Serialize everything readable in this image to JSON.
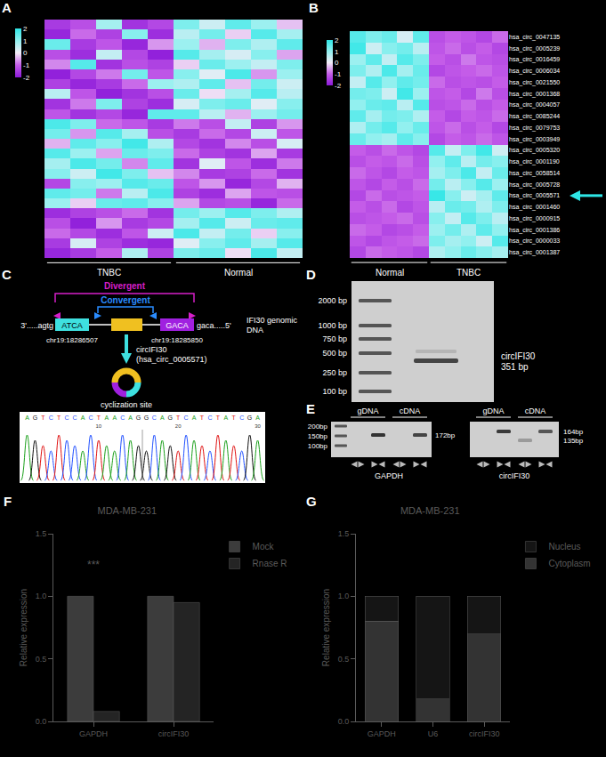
{
  "chart_data": [
    {
      "panel": "A",
      "type": "heatmap",
      "tick_labels": false,
      "column_groups": [
        {
          "label": "TNBC",
          "count": 5
        },
        {
          "label": "Normal",
          "count": 5
        }
      ],
      "colorbar": {
        "range": [
          -2,
          2
        ],
        "ticks": [
          -2,
          -1,
          0,
          1,
          2
        ]
      },
      "cells": [
        [
          -1.5,
          -1.2,
          0.8,
          -1.6,
          -1.3,
          1.2,
          0.4,
          1.5,
          0.9,
          -0.3
        ],
        [
          -1.8,
          -0.9,
          -1.4,
          1.1,
          -1.7,
          0.6,
          1.3,
          -0.2,
          1.6,
          0.8
        ],
        [
          1.4,
          -1.5,
          -1.1,
          -1.8,
          -0.6,
          0.9,
          -0.4,
          1.2,
          0.7,
          1.5
        ],
        [
          -1.2,
          -1.7,
          0.5,
          -1.3,
          -1.9,
          1.6,
          0.8,
          0.3,
          1.1,
          -0.5
        ],
        [
          -0.7,
          1.6,
          -1.6,
          -1.2,
          -1.4,
          -0.2,
          1.4,
          0.9,
          0.5,
          1.2
        ],
        [
          -1.9,
          -1.3,
          -0.8,
          1.3,
          -1.1,
          1.1,
          0.2,
          1.7,
          -0.6,
          0.9
        ],
        [
          -1.4,
          -1.8,
          -1.5,
          -0.9,
          0.9,
          0.7,
          1.5,
          -0.3,
          1.3,
          0.4
        ],
        [
          0.6,
          -1.1,
          -1.9,
          -1.6,
          -1.2,
          1.4,
          -0.1,
          0.8,
          1.6,
          0.6
        ],
        [
          -1.6,
          -0.8,
          1.2,
          -1.4,
          -1.7,
          0.3,
          1.2,
          1.4,
          0.2,
          1.1
        ],
        [
          -1.1,
          -1.6,
          -1.3,
          -1.8,
          1.5,
          1.5,
          0.6,
          -0.4,
          0.9,
          1.3
        ],
        [
          1.7,
          1.2,
          -0.9,
          -1.1,
          -1.5,
          -0.8,
          -1.2,
          0.5,
          -1.4,
          -0.6
        ],
        [
          1.3,
          -0.6,
          1.6,
          0.8,
          -1.2,
          -1.5,
          -0.9,
          -1.3,
          0.4,
          -1.1
        ],
        [
          -0.4,
          1.5,
          1.1,
          1.8,
          0.7,
          -1.3,
          -1.6,
          -0.7,
          -1.2,
          0.3
        ],
        [
          1.6,
          0.9,
          -0.5,
          1.4,
          1.2,
          -0.9,
          -1.4,
          -1.6,
          -0.5,
          -1.5
        ],
        [
          0.8,
          1.7,
          1.3,
          -0.7,
          1.5,
          -1.6,
          0.2,
          -1.1,
          -1.7,
          -0.8
        ],
        [
          1.1,
          0.4,
          1.8,
          1.2,
          -0.3,
          -0.7,
          -1.5,
          -1.4,
          -0.9,
          -1.6
        ],
        [
          -1.3,
          1.1,
          0.9,
          1.6,
          1.4,
          -1.1,
          -0.6,
          -1.8,
          -1.3,
          -0.4
        ],
        [
          1.5,
          1.3,
          -0.8,
          0.6,
          1.7,
          -1.4,
          -1.7,
          -0.5,
          -1.1,
          -1.2
        ],
        [
          0.9,
          -0.2,
          1.4,
          1.5,
          1.1,
          -0.5,
          -1.3,
          -1.2,
          -1.8,
          -0.9
        ],
        [
          -1.7,
          -1.4,
          -1.2,
          -0.9,
          -1.6,
          1.3,
          0.9,
          1.6,
          1.2,
          0.7
        ],
        [
          -1.2,
          -1.9,
          -0.6,
          -1.5,
          -1.3,
          0.8,
          1.6,
          0.4,
          1.4,
          1.5
        ],
        [
          -0.9,
          -1.3,
          -1.7,
          -1.1,
          0.4,
          1.7,
          0.5,
          1.3,
          -0.2,
          1.1
        ],
        [
          -1.5,
          0.3,
          -1.4,
          -1.7,
          -1.8,
          0.2,
          1.1,
          1.5,
          0.8,
          1.6
        ],
        [
          -1.8,
          -1.5,
          -1.0,
          0.7,
          -1.4,
          1.2,
          1.4,
          -0.1,
          1.7,
          0.5
        ]
      ]
    },
    {
      "panel": "B",
      "type": "heatmap",
      "tick_labels": "y",
      "column_groups": [
        {
          "label": "Normal",
          "count": 5
        },
        {
          "label": "TNBC",
          "count": 5
        }
      ],
      "colorbar": {
        "range": [
          -2,
          2
        ],
        "ticks": [
          -2,
          -1,
          0,
          1,
          2
        ]
      },
      "rows": [
        "hsa_circ_0047135",
        "hsa_circ_0005239",
        "hsa_circ_0016459",
        "hsa_circ_0006034",
        "hsa_circ_0021550",
        "hsa_circ_0001368",
        "hsa_circ_0004057",
        "hsa_circ_0085244",
        "hsa_circ_0079753",
        "hsa_circ_0003949",
        "hsa_circ_0005320",
        "hsa_circ_0001190",
        "hsa_circ_0058514",
        "hsa_circ_0005728",
        "hsa_circ_0005571",
        "hsa_circ_0001460",
        "hsa_circ_0000915",
        "hsa_circ_0001386",
        "hsa_circ_0000033",
        "hsa_circ_0001387"
      ],
      "highlight": "hsa_circ_0005571",
      "cells": [
        [
          1.6,
          1.2,
          1.4,
          0.3,
          1.5,
          -1.2,
          -1.0,
          -1.1,
          -1.3,
          -0.9
        ],
        [
          1.8,
          0.4,
          1.1,
          1.3,
          0.6,
          -1.1,
          -0.9,
          -1.2,
          -1.0,
          -1.3
        ],
        [
          0.9,
          1.5,
          0.5,
          1.6,
          1.2,
          -1.0,
          -1.2,
          -0.8,
          -1.1,
          -1.2
        ],
        [
          1.2,
          0.7,
          1.7,
          0.8,
          1.4,
          -1.3,
          -1.1,
          -1.0,
          -0.9,
          -1.1
        ],
        [
          0.5,
          1.6,
          1.0,
          1.5,
          1.3,
          -0.9,
          -1.2,
          -1.1,
          -1.2,
          -1.0
        ],
        [
          1.3,
          1.2,
          0.4,
          1.8,
          0.9,
          -1.1,
          -1.0,
          -1.3,
          -0.8,
          -1.2
        ],
        [
          1.0,
          1.4,
          1.5,
          0.6,
          1.6,
          -1.2,
          -1.1,
          -0.9,
          -1.2,
          -1.0
        ],
        [
          1.5,
          0.8,
          1.3,
          1.2,
          0.7,
          -1.0,
          -1.3,
          -1.0,
          -1.1,
          -0.9
        ],
        [
          0.7,
          1.3,
          1.6,
          1.0,
          1.4,
          -1.1,
          -0.9,
          -1.2,
          -1.0,
          -1.3
        ],
        [
          1.4,
          1.0,
          0.8,
          1.5,
          1.1,
          -1.3,
          -1.0,
          -1.1,
          -0.9,
          -1.1
        ],
        [
          -1.0,
          -1.2,
          -0.9,
          -1.1,
          -1.3,
          1.6,
          0.5,
          1.2,
          1.8,
          0.4
        ],
        [
          -1.2,
          -1.0,
          -1.1,
          -0.9,
          -1.2,
          1.0,
          1.5,
          0.6,
          1.3,
          1.1
        ],
        [
          -0.9,
          -1.1,
          -1.3,
          -1.0,
          -1.1,
          0.8,
          1.2,
          1.7,
          0.5,
          1.4
        ],
        [
          -1.1,
          -1.3,
          -1.0,
          -1.2,
          -0.9,
          1.3,
          0.6,
          1.1,
          1.6,
          0.9
        ],
        [
          -1.3,
          -0.9,
          -1.2,
          -1.1,
          -1.0,
          1.9,
          1.1,
          0.4,
          0.8,
          1.5
        ],
        [
          -1.0,
          -1.2,
          -0.9,
          -1.3,
          -1.1,
          0.6,
          1.4,
          1.3,
          0.7,
          1.2
        ],
        [
          -1.2,
          -1.1,
          -1.0,
          -0.9,
          -1.2,
          1.1,
          0.5,
          1.6,
          1.2,
          0.6
        ],
        [
          -0.9,
          -1.0,
          -1.3,
          -1.2,
          -1.0,
          0.9,
          1.3,
          0.7,
          1.5,
          1.0
        ],
        [
          -1.1,
          -1.3,
          -1.1,
          -1.0,
          -0.9,
          1.2,
          0.8,
          1.0,
          0.4,
          1.6
        ],
        [
          -1.3,
          -0.9,
          -1.0,
          -1.1,
          -1.3,
          0.7,
          1.0,
          1.4,
          1.1,
          0.8
        ]
      ]
    },
    {
      "panel": "F",
      "type": "bar",
      "title": "MDA-MB-231",
      "y_label": "Relative expression",
      "categories": [
        "GAPDH",
        "circIFI30"
      ],
      "series": [
        {
          "name": "Mock",
          "color": "#3c3c3c",
          "values": [
            1.0,
            1.0
          ]
        },
        {
          "name": "Rnase R",
          "color": "#242424",
          "values": [
            0.08,
            0.95
          ]
        }
      ],
      "ylim": [
        0,
        1.5
      ],
      "yticks": [
        {
          "value": 0,
          "label": "0.0"
        },
        0.5,
        {
          "value": 1,
          "label": "1.0"
        },
        1.5
      ],
      "grid": false,
      "legend": "top right",
      "annotations": [
        {
          "text": "***",
          "category": "GAPDH",
          "y": 1.25
        }
      ]
    },
    {
      "panel": "G",
      "type": "bar",
      "title": "MDA-MB-231",
      "y_label": "Relative expression",
      "categories": [
        "GAPDH",
        "U6",
        "circIFI30"
      ],
      "series": [
        {
          "name": "Cytoplasm",
          "color": "#333333",
          "values": [
            0.8,
            0.18,
            0.7
          ]
        },
        {
          "name": "Nucleus",
          "color": "#151515",
          "values": [
            0.2,
            0.82,
            0.3
          ]
        }
      ],
      "stacked": true,
      "ylim": [
        0,
        1.5
      ],
      "yticks": [
        {
          "value": 0,
          "label": "0.0"
        },
        0.5,
        {
          "value": 1,
          "label": "1.0"
        },
        1.5
      ],
      "grid": false,
      "legend": "top right"
    }
  ],
  "diagram": {
    "C": {
      "panel": "C",
      "divergent": "Divergent",
      "convergent": "Convergent",
      "left_flank": "3'.....agtg",
      "exon_start": "ATCA",
      "exon_end": "GACA",
      "right_flank": "gaca.....5'",
      "gene": [
        "IFI30 genomic",
        "DNA"
      ],
      "left_coord": "chr19:18286507",
      "right_coord": "chr19:18285850",
      "product": [
        "circIFI30",
        "(hsa_circ_0005571)"
      ],
      "junction": "cyclization site",
      "sequence": "AGTCTCCACTAACAGGCAGTCATCTATCGA",
      "positions": [
        10,
        20,
        30
      ]
    },
    "D": {
      "panel": "D",
      "ladder": [
        "2000 bp",
        "1000 bp",
        "750 bp",
        "500 bp",
        "250 bp",
        "100 bp"
      ],
      "band": [
        "circIFI30",
        "351 bp"
      ]
    },
    "E": {
      "panel": "E",
      "groups": [
        "gDNA",
        "cDNA"
      ],
      "gels": [
        {
          "name": "GAPDH",
          "ladder": [
            "200bp",
            "150bp",
            "100bp"
          ],
          "sizes": [
            "172bp"
          ]
        },
        {
          "name": "circIFI30",
          "ladder": [],
          "sizes": [
            "164bp",
            "135bp"
          ]
        }
      ]
    }
  }
}
